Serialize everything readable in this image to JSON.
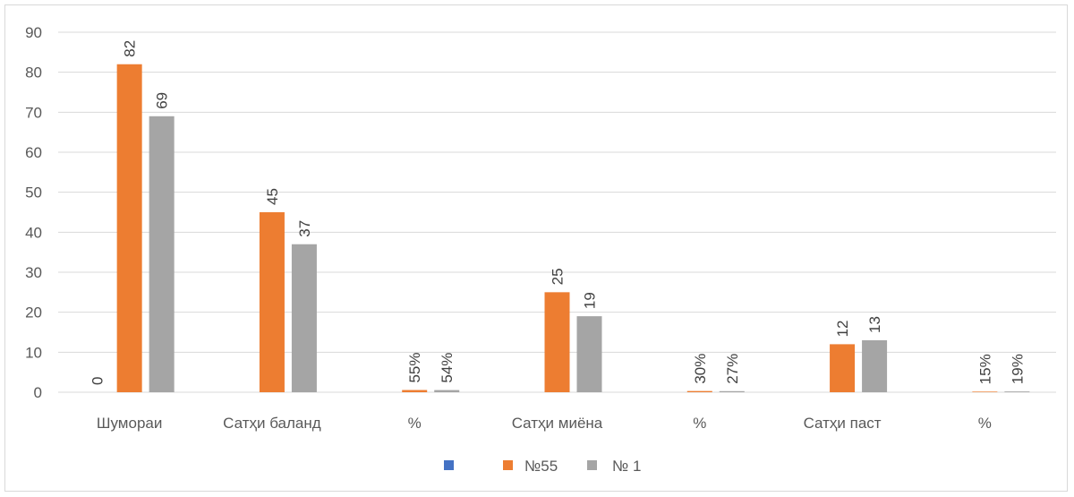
{
  "chart_data": {
    "type": "bar",
    "categories": [
      "Шумораи",
      "Сатҳи баланд",
      "%",
      "Сатҳи миёна",
      "%",
      "Сатҳи паст",
      "%"
    ],
    "series": [
      {
        "name": "",
        "color": "#4472c4",
        "values": [
          0,
          null,
          null,
          null,
          null,
          null,
          null
        ],
        "labels": [
          "0",
          null,
          null,
          null,
          null,
          null,
          null
        ]
      },
      {
        "name": "№55",
        "color": "#ed7d31",
        "values": [
          82,
          45,
          0.55,
          25,
          0.3,
          12,
          0.15
        ],
        "labels": [
          "82",
          "45",
          "55%",
          "25",
          "30%",
          "12",
          "15%"
        ]
      },
      {
        "name": "№ 1",
        "color": "#a5a5a5",
        "values": [
          69,
          37,
          0.54,
          19,
          0.27,
          13,
          0.19
        ],
        "labels": [
          "69",
          "37",
          "54%",
          "19",
          "27%",
          "13",
          "19%"
        ]
      }
    ],
    "ylim": [
      0,
      90
    ],
    "yticks": [
      0,
      10,
      20,
      30,
      40,
      50,
      60,
      70,
      80,
      90
    ],
    "grid": true,
    "legend": "bottom"
  }
}
